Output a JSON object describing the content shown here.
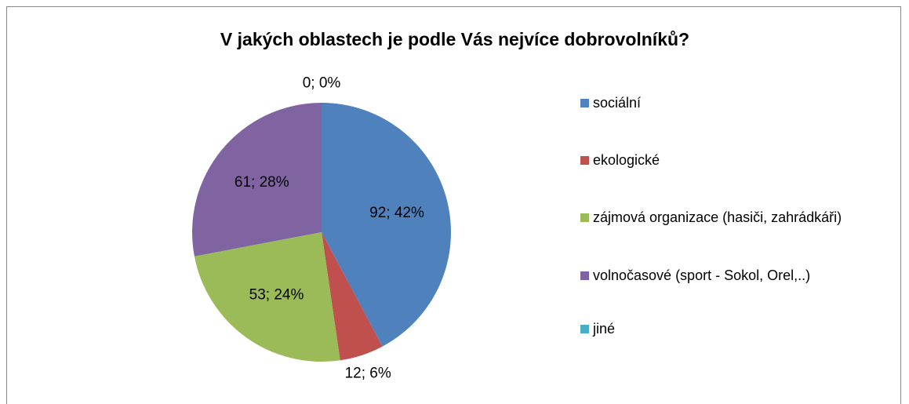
{
  "chart_data": {
    "type": "pie",
    "title": "V jakých oblastech je podle Vás nejvíce dobrovolníků?",
    "categories": [
      "sociální",
      "ekologické",
      "zájmová organizace (hasiči, zahrádkáři)",
      "volnočasové (sport - Sokol, Orel,..)",
      "jiné"
    ],
    "values": [
      92,
      12,
      53,
      61,
      0
    ],
    "value_labels": [
      "92; 42%",
      "12; 6%",
      "53; 24%",
      "61; 28%",
      "0; 0%"
    ],
    "colors": [
      "#4f81bd",
      "#c0504d",
      "#9bbb59",
      "#8064a2",
      "#4bacc6"
    ],
    "legend": "right"
  }
}
